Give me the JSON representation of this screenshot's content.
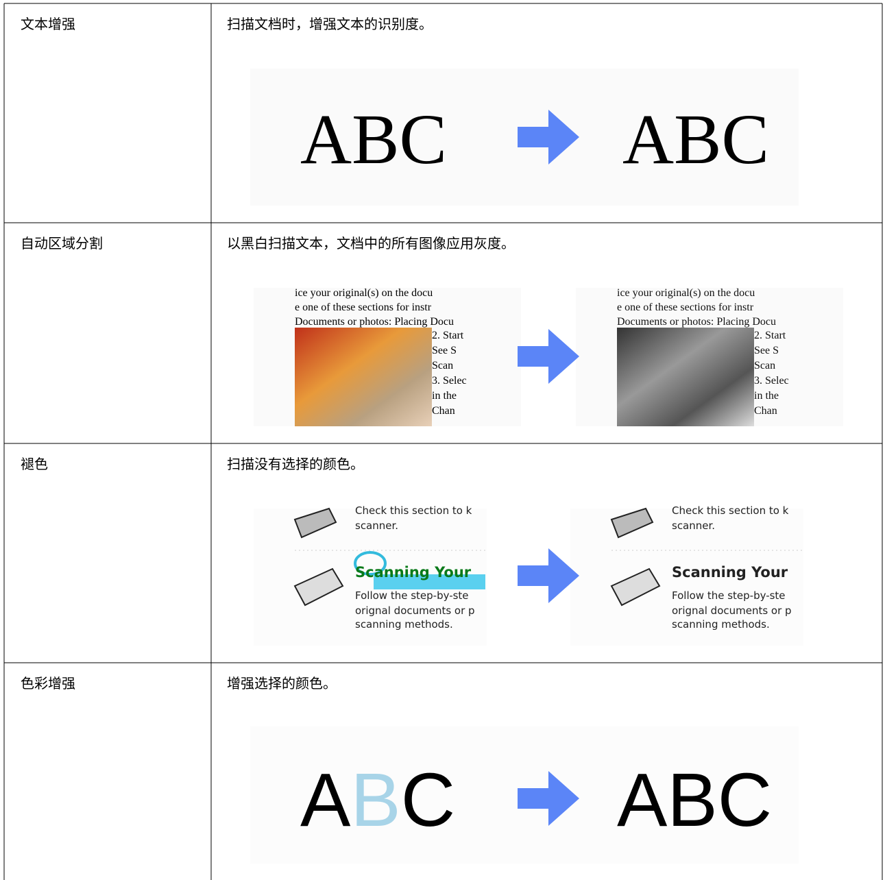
{
  "table": {
    "rows": [
      {
        "name": "文本增强",
        "description": "扫描文档时，增强文本的识别度。",
        "illustration": {
          "text": "ABC"
        }
      },
      {
        "name": "自动区域分割",
        "description": "以黑白扫描文本，文档中的所有图像应用灰度。",
        "illustration": {
          "lines": [
            "ice your original(s) on the docu",
            "e one of these sections for instr",
            "Documents or photos: Placing Docu",
            "2. Start",
            "See S",
            "Scan",
            "3. Selec",
            "in the",
            "Chan"
          ]
        }
      },
      {
        "name": "褪色",
        "description": "扫描没有选择的颜色。",
        "illustration": {
          "lines": [
            "Check this section to k",
            "scanner.",
            "Scanning Your",
            "Follow the step-by-ste",
            "orignal documents or p",
            "scanning methods."
          ]
        }
      },
      {
        "name": "色彩增强",
        "description": "增强选择的颜色。",
        "illustration": {
          "letters": [
            "A",
            "B",
            "C"
          ]
        }
      }
    ]
  }
}
